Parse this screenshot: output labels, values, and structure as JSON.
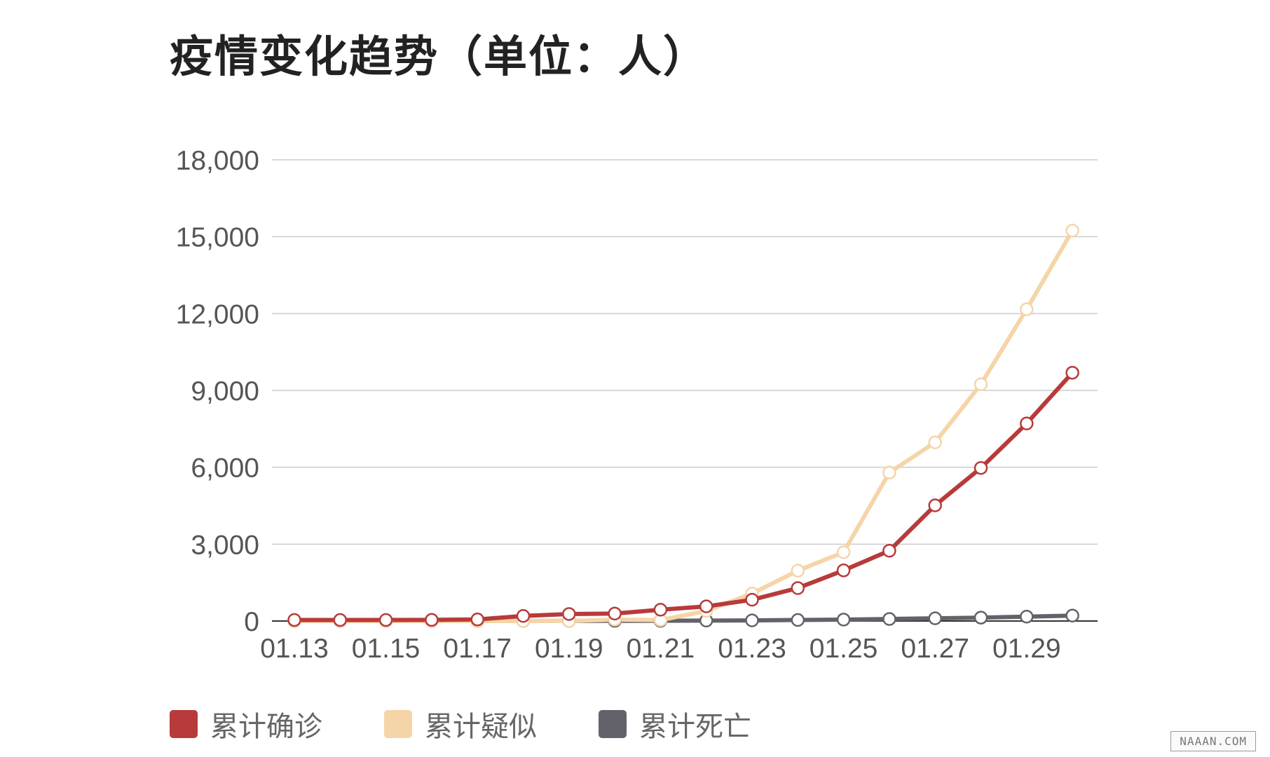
{
  "colors": {
    "confirmed": "#b83a3a",
    "suspected": "#f5d5a8",
    "deaths": "#63626a",
    "grid": "#cccccc",
    "axis": "#333333"
  },
  "chart_data": {
    "type": "line",
    "title": "疫情变化趋势（单位：人）",
    "x": [
      "01.13",
      "01.14",
      "01.15",
      "01.16",
      "01.17",
      "01.18",
      "01.19",
      "01.20",
      "01.21",
      "01.22",
      "01.23",
      "01.24",
      "01.25",
      "01.26",
      "01.27",
      "01.28",
      "01.29",
      "01.30"
    ],
    "x_tick_labels": [
      "01.13",
      "01.15",
      "01.17",
      "01.19",
      "01.21",
      "01.23",
      "01.25",
      "01.27",
      "01.29"
    ],
    "y_ticks": [
      0,
      3000,
      6000,
      9000,
      12000,
      15000,
      18000
    ],
    "y_tick_labels": [
      "0",
      "3,000",
      "6,000",
      "9,000",
      "12,000",
      "15,000",
      "18,000"
    ],
    "ylim": [
      0,
      18000
    ],
    "grid": true,
    "legend_position": "bottom-left",
    "series": [
      {
        "name": "累计确诊",
        "color": "#b83a3a",
        "values": [
          41,
          41,
          41,
          45,
          62,
          198,
          275,
          291,
          440,
          571,
          830,
          1287,
          1975,
          2744,
          4515,
          5974,
          7711,
          9692
        ]
      },
      {
        "name": "累计疑似",
        "color": "#f5d5a8",
        "values": [
          0,
          0,
          0,
          0,
          0,
          0,
          0,
          54,
          37,
          393,
          1072,
          1965,
          2684,
          5794,
          6973,
          9239,
          12167,
          15238
        ]
      },
      {
        "name": "累计死亡",
        "color": "#63626a",
        "values": [
          1,
          1,
          2,
          2,
          2,
          3,
          4,
          6,
          9,
          17,
          25,
          41,
          56,
          80,
          106,
          132,
          170,
          213
        ]
      }
    ]
  },
  "watermark": "NAAAN.COM"
}
